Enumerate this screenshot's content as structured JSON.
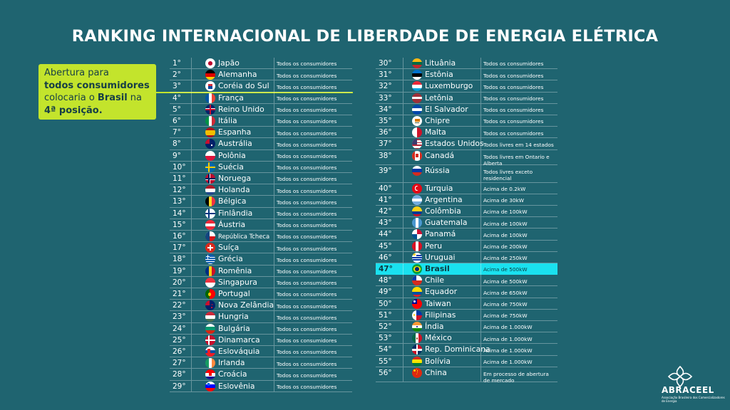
{
  "title": "RANKING INTERNACIONAL DE LIBERDADE DE ENERGIA ELÉTRICA",
  "callout": {
    "line1": "Abertura para",
    "line2": "todos consumidores",
    "line3_pre": "colocaria o ",
    "line3_bold": "Brasil",
    "line3_post": " na",
    "line4": "4ª posição."
  },
  "logo": {
    "name": "ABRACEEL",
    "subtitle": "Associação Brasileira dos Comercializadores de Energia"
  },
  "highlight_color": "#1ae1ef",
  "left_table": [
    {
      "rank": "1°",
      "country": "Japão",
      "scope": "Todos os consumidores",
      "flag": "japan"
    },
    {
      "rank": "2°",
      "country": "Alemanha",
      "scope": "Todos os consumidores",
      "flag": "germany"
    },
    {
      "rank": "3°",
      "country": "Coréia do Sul",
      "scope": "Todos os consumidores",
      "flag": "south-korea"
    },
    {
      "rank": "4°",
      "country": "França",
      "scope": "Todos os consumidores",
      "flag": "france"
    },
    {
      "rank": "5°",
      "country": "Reino Unido",
      "scope": "Todos os consumidores",
      "flag": "united-kingdom"
    },
    {
      "rank": "6°",
      "country": "Itália",
      "scope": "Todos os consumidores",
      "flag": "italy"
    },
    {
      "rank": "7°",
      "country": "Espanha",
      "scope": "Todos os consumidores",
      "flag": "spain"
    },
    {
      "rank": "8°",
      "country": "Austrália",
      "scope": "Todos os consumidores",
      "flag": "australia"
    },
    {
      "rank": "9°",
      "country": "Polônia",
      "scope": "Todos os consumidores",
      "flag": "poland"
    },
    {
      "rank": "10°",
      "country": "Suécia",
      "scope": "Todos os consumidores",
      "flag": "sweden"
    },
    {
      "rank": "11°",
      "country": "Noruega",
      "scope": "Todos os consumidores",
      "flag": "norway"
    },
    {
      "rank": "12°",
      "country": "Holanda",
      "scope": "Todos os consumidores",
      "flag": "netherlands"
    },
    {
      "rank": "13°",
      "country": "Bélgica",
      "scope": "Todos os consumidores",
      "flag": "belgium"
    },
    {
      "rank": "14°",
      "country": "Finlândia",
      "scope": "Todos os consumidores",
      "flag": "finland"
    },
    {
      "rank": "15°",
      "country": "Áustria",
      "scope": "Todos os consumidores",
      "flag": "austria"
    },
    {
      "rank": "16°",
      "country": "República Tcheca",
      "scope": "Todos os consumidores",
      "flag": "czech-republic"
    },
    {
      "rank": "17°",
      "country": "Suíça",
      "scope": "Todos os consumidores",
      "flag": "switzerland"
    },
    {
      "rank": "18°",
      "country": "Grécia",
      "scope": "Todos os consumidores",
      "flag": "greece"
    },
    {
      "rank": "19°",
      "country": "Romênia",
      "scope": "Todos os consumidores",
      "flag": "romania"
    },
    {
      "rank": "20°",
      "country": "Singapura",
      "scope": "Todos os consumidores",
      "flag": "singapore"
    },
    {
      "rank": "21°",
      "country": "Portugal",
      "scope": "Todos os consumidores",
      "flag": "portugal"
    },
    {
      "rank": "22°",
      "country": "Nova Zelândia",
      "scope": "Todos os consumidores",
      "flag": "new-zealand"
    },
    {
      "rank": "23°",
      "country": "Hungria",
      "scope": "Todos os consumidores",
      "flag": "hungary"
    },
    {
      "rank": "24°",
      "country": "Bulgária",
      "scope": "Todos os consumidores",
      "flag": "bulgaria"
    },
    {
      "rank": "25°",
      "country": "Dinamarca",
      "scope": "Todos os consumidores",
      "flag": "denmark"
    },
    {
      "rank": "26°",
      "country": "Eslováquia",
      "scope": "Todos os consumidores",
      "flag": "slovakia"
    },
    {
      "rank": "27°",
      "country": "Irlanda",
      "scope": "Todos os consumidores",
      "flag": "ireland"
    },
    {
      "rank": "28°",
      "country": "Croácia",
      "scope": "Todos os consumidores",
      "flag": "croatia"
    },
    {
      "rank": "29°",
      "country": "Eslovênia",
      "scope": "Todos os consumidores",
      "flag": "slovenia"
    }
  ],
  "right_table": [
    {
      "rank": "30°",
      "country": "Lituânia",
      "scope": "Todos os consumidores",
      "flag": "lithuania"
    },
    {
      "rank": "31°",
      "country": "Estônia",
      "scope": "Todos os consumidores",
      "flag": "estonia"
    },
    {
      "rank": "32°",
      "country": "Luxemburgo",
      "scope": "Todos os consumidores",
      "flag": "luxembourg"
    },
    {
      "rank": "33°",
      "country": "Letônia",
      "scope": "Todos os consumidores",
      "flag": "latvia"
    },
    {
      "rank": "34°",
      "country": "El Salvador",
      "scope": "Todos os consumidores",
      "flag": "el-salvador"
    },
    {
      "rank": "35°",
      "country": "Chipre",
      "scope": "Todos os consumidores",
      "flag": "cyprus"
    },
    {
      "rank": "36°",
      "country": "Malta",
      "scope": "Todos os consumidores",
      "flag": "malta"
    },
    {
      "rank": "37°",
      "country": "Estados Unidos",
      "scope": "Todos livres em 14 estados",
      "flag": "united-states"
    },
    {
      "rank": "38°",
      "country": "Canadá",
      "scope": "Todos livres em Ontario e Alberta",
      "flag": "canada"
    },
    {
      "rank": "39°",
      "country": "Rússia",
      "scope": "Todos livres exceto residencial",
      "flag": "russia"
    },
    {
      "rank": "40°",
      "country": "Turquia",
      "scope": "Acima de 0.2kW",
      "flag": "turkey"
    },
    {
      "rank": "41°",
      "country": "Argentina",
      "scope": "Acima de 30kW",
      "flag": "argentina"
    },
    {
      "rank": "42°",
      "country": "Colômbia",
      "scope": "Acima de 100kW",
      "flag": "colombia"
    },
    {
      "rank": "43°",
      "country": "Guatemala",
      "scope": "Acima de 100kW",
      "flag": "guatemala"
    },
    {
      "rank": "44°",
      "country": "Panamá",
      "scope": "Acima de 100kW",
      "flag": "panama"
    },
    {
      "rank": "45°",
      "country": "Peru",
      "scope": "Acima de 200kW",
      "flag": "peru"
    },
    {
      "rank": "46°",
      "country": "Uruguai",
      "scope": "Acima de 250kW",
      "flag": "uruguay"
    },
    {
      "rank": "47°",
      "country": "Brasil",
      "scope": "Acima de 500kW",
      "flag": "brazil",
      "highlight": true
    },
    {
      "rank": "48°",
      "country": "Chile",
      "scope": "Acima de 500kW",
      "flag": "chile"
    },
    {
      "rank": "49°",
      "country": "Equador",
      "scope": "Acima de 650kW",
      "flag": "ecuador"
    },
    {
      "rank": "50°",
      "country": "Taiwan",
      "scope": "Acima de 750kW",
      "flag": "taiwan"
    },
    {
      "rank": "51°",
      "country": "Filipinas",
      "scope": "Acima de 750kW",
      "flag": "philippines"
    },
    {
      "rank": "52°",
      "country": "Índia",
      "scope": "Acima de 1.000kW",
      "flag": "india"
    },
    {
      "rank": "53°",
      "country": "México",
      "scope": "Acima de 1.000kW",
      "flag": "mexico"
    },
    {
      "rank": "54°",
      "country": "Rep. Dominicana",
      "scope": "Acima de 1.000kW",
      "flag": "dominican-republic"
    },
    {
      "rank": "55°",
      "country": "Bolívia",
      "scope": "Acima de 1.000kW",
      "flag": "bolivia"
    },
    {
      "rank": "56°",
      "country": "China",
      "scope": "Em processo de abertura de mercado",
      "flag": "china"
    }
  ]
}
